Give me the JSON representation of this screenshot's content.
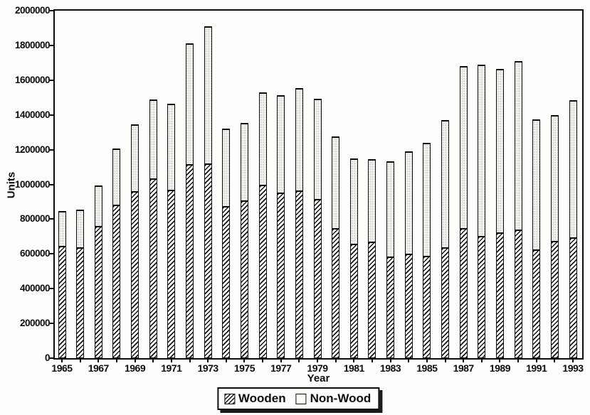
{
  "chart_data": {
    "type": "bar",
    "stacked": true,
    "title": "",
    "xlabel": "Year",
    "ylabel": "Units",
    "ylim": [
      0,
      2000000
    ],
    "ytick_interval": 200000,
    "ytick_labels": [
      "0",
      "200000",
      "400000",
      "600000",
      "800000",
      "1000000",
      "1200000",
      "1400000",
      "1600000",
      "1800000",
      "2000000"
    ],
    "xtick_labels_shown": [
      "1965",
      "1967",
      "1969",
      "1971",
      "1973",
      "1975",
      "1977",
      "1979",
      "1981",
      "1983",
      "1985",
      "1987",
      "1989",
      "1991",
      "1993"
    ],
    "grid": false,
    "legend_position": "bottom-center",
    "categories": [
      1965,
      1966,
      1967,
      1968,
      1969,
      1970,
      1971,
      1972,
      1973,
      1974,
      1975,
      1976,
      1977,
      1978,
      1979,
      1980,
      1981,
      1982,
      1983,
      1984,
      1985,
      1986,
      1987,
      1988,
      1989,
      1990,
      1991,
      1992,
      1993
    ],
    "series": [
      {
        "name": "Wooden",
        "pattern": "diagonal-hatch",
        "values": [
          645000,
          640000,
          760000,
          885000,
          960000,
          1035000,
          970000,
          1115000,
          1120000,
          875000,
          910000,
          1000000,
          955000,
          965000,
          915000,
          750000,
          660000,
          670000,
          585000,
          600000,
          590000,
          640000,
          750000,
          705000,
          725000,
          740000,
          625000,
          675000,
          695000
        ]
      },
      {
        "name": "Non-Wood",
        "pattern": "light-stipple",
        "values": [
          200000,
          215000,
          235000,
          320000,
          385000,
          455000,
          495000,
          695000,
          790000,
          445000,
          445000,
          530000,
          560000,
          590000,
          580000,
          525000,
          490000,
          475000,
          550000,
          590000,
          650000,
          730000,
          930000,
          985000,
          940000,
          970000,
          750000,
          725000,
          790000
        ]
      }
    ]
  },
  "legend": {
    "items": [
      {
        "label": "Wooden"
      },
      {
        "label": "Non-Wood"
      }
    ]
  },
  "colors": {
    "ink": "#0d0d0d",
    "background": "#fdfdfb",
    "stipple_fill": "#f0f0ec"
  }
}
